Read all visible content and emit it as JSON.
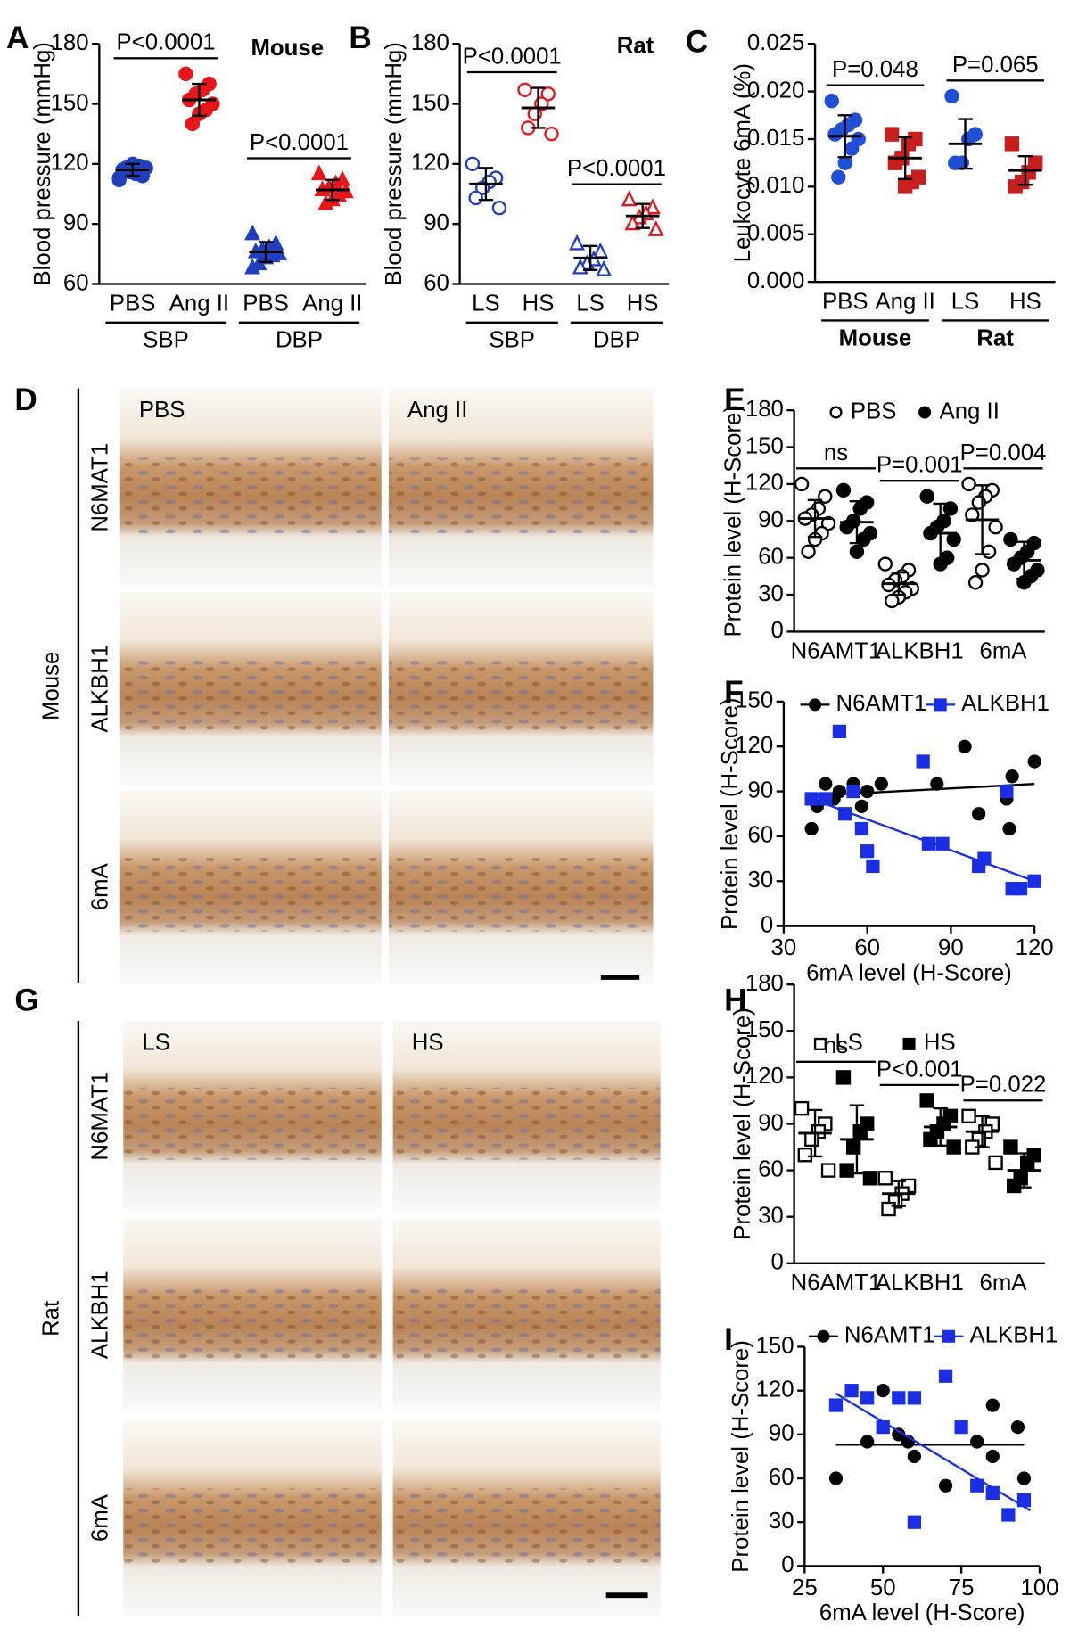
{
  "histology": [
    {
      "panel": "D",
      "side": "Mouse",
      "columns": [
        "PBS",
        "Ang II"
      ],
      "rows": [
        "N6MAT1",
        "ALKBH1",
        "6mA"
      ]
    },
    {
      "panel": "G",
      "side": "Rat",
      "columns": [
        "LS",
        "HS"
      ],
      "rows": [
        "N6MAT1",
        "ALKBH1",
        "6mA"
      ]
    }
  ],
  "chart_data": [
    {
      "type": "dotplot",
      "panel": "A",
      "title": "Mouse",
      "ylabel": "Blood pressure (mmHg)",
      "ylim": [
        60,
        180
      ],
      "yticks": [
        60,
        90,
        120,
        150,
        180
      ],
      "categories": [
        "PBS",
        "Ang II",
        "PBS",
        "Ang II"
      ],
      "groups": [
        "SBP",
        "DBP"
      ],
      "annotations": [
        "P<0.0001",
        "P<0.0001"
      ],
      "columns": [
        {
          "color": "#1f3fbf",
          "marker": "circle",
          "filled": true,
          "points": [
            112,
            114,
            115,
            116,
            117,
            118,
            119,
            120,
            118,
            113
          ],
          "mean": 117,
          "sd": 3
        },
        {
          "color": "#e8161b",
          "marker": "circle",
          "filled": true,
          "points": [
            165,
            160,
            157,
            155,
            152,
            150,
            147,
            145,
            140
          ],
          "mean": 152,
          "sd": 8
        },
        {
          "color": "#1f3fbf",
          "marker": "triangle",
          "filled": true,
          "points": [
            85,
            80,
            78,
            77,
            76,
            75,
            74,
            73,
            70,
            68
          ],
          "mean": 76,
          "sd": 5
        },
        {
          "color": "#e8161b",
          "marker": "triangle",
          "filled": true,
          "points": [
            115,
            112,
            110,
            108,
            107,
            106,
            104,
            102,
            100
          ],
          "mean": 107,
          "sd": 5
        }
      ]
    },
    {
      "type": "dotplot",
      "panel": "B",
      "title": "Rat",
      "ylabel": "Blood pressure (mmHg)",
      "ylim": [
        60,
        180
      ],
      "yticks": [
        60,
        90,
        120,
        150,
        180
      ],
      "categories": [
        "LS",
        "HS",
        "LS",
        "HS"
      ],
      "groups": [
        "SBP",
        "DBP"
      ],
      "annotations": [
        "P<0.0001",
        "P<0.0001"
      ],
      "columns": [
        {
          "color": "#1f3fbf",
          "marker": "circle",
          "filled": false,
          "points": [
            120,
            113,
            111,
            108,
            103,
            98
          ],
          "mean": 110,
          "sd": 8
        },
        {
          "color": "#e8161b",
          "marker": "circle",
          "filled": false,
          "points": [
            157,
            155,
            150,
            145,
            138,
            135
          ],
          "mean": 148,
          "sd": 10
        },
        {
          "color": "#1f3fbf",
          "marker": "triangle",
          "filled": false,
          "points": [
            80,
            76,
            72,
            70,
            68,
            67
          ],
          "mean": 73,
          "sd": 6
        },
        {
          "color": "#e8161b",
          "marker": "triangle",
          "filled": false,
          "points": [
            102,
            98,
            95,
            93,
            90,
            87
          ],
          "mean": 94,
          "sd": 6
        }
      ]
    },
    {
      "type": "dotplot",
      "panel": "C",
      "ylabel": "Leukocyte 6mA (%)",
      "ylim": [
        0,
        0.025
      ],
      "yticks": [
        {
          "value": 0,
          "label": "0.000"
        },
        {
          "value": 0.005,
          "label": "0.005"
        },
        {
          "value": 0.01,
          "label": "0.010"
        },
        {
          "value": 0.015,
          "label": "0.015"
        },
        {
          "value": 0.02,
          "label": "0.020"
        },
        {
          "value": 0.025,
          "label": "0.025"
        }
      ],
      "categories": [
        "PBS",
        "Ang II",
        "LS",
        "HS"
      ],
      "groups": [
        "Mouse",
        "Rat"
      ],
      "groups_bold": true,
      "annotations": [
        "P=0.048",
        "P=0.065"
      ],
      "columns": [
        {
          "color": "#1f4fd6",
          "marker": "circle",
          "filled": true,
          "points": [
            0.019,
            0.017,
            0.0165,
            0.016,
            0.0155,
            0.015,
            0.014,
            0.0125,
            0.011
          ],
          "mean": 0.0153,
          "sd": 0.0022
        },
        {
          "color": "#c81e1e",
          "marker": "square",
          "filled": true,
          "points": [
            0.0155,
            0.015,
            0.0145,
            0.013,
            0.0125,
            0.011,
            0.0105,
            0.01
          ],
          "mean": 0.013,
          "sd": 0.0022
        },
        {
          "color": "#1f4fd6",
          "marker": "circle",
          "filled": true,
          "points": [
            0.0195,
            0.0155,
            0.015,
            0.0125,
            0.0125
          ],
          "mean": 0.0145,
          "sd": 0.0026
        },
        {
          "color": "#c81e1e",
          "marker": "square",
          "filled": true,
          "points": [
            0.0145,
            0.0125,
            0.0115,
            0.0105,
            0.01
          ],
          "mean": 0.0117,
          "sd": 0.0015
        }
      ]
    },
    {
      "type": "dotplot",
      "panel": "E",
      "ylabel": "Protein level (H-Score)",
      "ylim": [
        0,
        180
      ],
      "yticks": [
        0,
        30,
        60,
        90,
        120,
        150,
        180
      ],
      "categories": [
        "N6AMT1",
        "ALKBH1",
        "6mA"
      ],
      "legend": [
        {
          "name": "PBS",
          "marker": "circle",
          "filled": false,
          "color": "#000000"
        },
        {
          "name": "Ang II",
          "marker": "circle",
          "filled": true,
          "color": "#000000"
        }
      ],
      "annotations": [
        "ns",
        "P=0.001",
        "P=0.004"
      ],
      "columns": [
        {
          "color": "#000000",
          "marker": "circle",
          "filled": false,
          "points": [
            120,
            110,
            100,
            95,
            92,
            88,
            80,
            75,
            65
          ],
          "mean": 92,
          "sd": 15
        },
        {
          "color": "#000000",
          "marker": "circle",
          "filled": true,
          "points": [
            115,
            105,
            100,
            90,
            85,
            80,
            75,
            65
          ],
          "mean": 89,
          "sd": 17
        },
        {
          "color": "#000000",
          "marker": "circle",
          "filled": false,
          "points": [
            55,
            50,
            45,
            42,
            38,
            35,
            32,
            28,
            25
          ],
          "mean": 39,
          "sd": 9
        },
        {
          "color": "#000000",
          "marker": "circle",
          "filled": true,
          "points": [
            110,
            100,
            90,
            85,
            80,
            75,
            60,
            55
          ],
          "mean": 80,
          "sd": 24
        },
        {
          "color": "#000000",
          "marker": "circle",
          "filled": false,
          "points": [
            120,
            115,
            110,
            105,
            95,
            85,
            65,
            50,
            40
          ],
          "mean": 91,
          "sd": 28
        },
        {
          "color": "#000000",
          "marker": "circle",
          "filled": true,
          "points": [
            75,
            72,
            65,
            60,
            55,
            50,
            45,
            40
          ],
          "mean": 58,
          "sd": 15
        }
      ]
    },
    {
      "type": "scatter",
      "panel": "F",
      "ylabel": "Protein level (H-Score)",
      "xlabel": "6mA level (H-Score)",
      "xlim": [
        30,
        120
      ],
      "xticks": [
        30,
        60,
        90,
        120
      ],
      "ylim": [
        0,
        150
      ],
      "yticks": [
        0,
        30,
        60,
        90,
        120,
        150
      ],
      "series": [
        {
          "name": "N6AMT1",
          "color": "#000000",
          "marker": "circle",
          "x": [
            40,
            42,
            45,
            48,
            50,
            55,
            58,
            60,
            65,
            85,
            95,
            100,
            110,
            111,
            112,
            120
          ],
          "y": [
            65,
            80,
            95,
            85,
            90,
            95,
            80,
            90,
            95,
            95,
            120,
            75,
            85,
            65,
            100,
            110
          ],
          "fit": {
            "x": [
              40,
              120
            ],
            "y": [
              87,
              95
            ]
          }
        },
        {
          "name": "ALKBH1",
          "color": "#1a2ee6",
          "marker": "square",
          "x": [
            40,
            45,
            50,
            52,
            55,
            58,
            60,
            62,
            80,
            82,
            87,
            100,
            102,
            110,
            112,
            115,
            120
          ],
          "y": [
            85,
            85,
            130,
            75,
            90,
            65,
            50,
            40,
            110,
            55,
            55,
            40,
            45,
            90,
            25,
            25,
            30
          ],
          "fit": {
            "x": [
              40,
              120
            ],
            "y": [
              85,
              30
            ]
          }
        }
      ]
    },
    {
      "type": "dotplot",
      "panel": "H",
      "ylabel": "Protein level (H-Score)",
      "ylim": [
        0,
        180
      ],
      "yticks": [
        0,
        30,
        60,
        90,
        120,
        150,
        180
      ],
      "categories": [
        "N6AMT1",
        "ALKBH1",
        "6mA"
      ],
      "legend": [
        {
          "name": "LS",
          "marker": "square",
          "filled": false,
          "color": "#000000"
        },
        {
          "name": "HS",
          "marker": "square",
          "filled": true,
          "color": "#000000"
        }
      ],
      "annotations": [
        "ns",
        "P<0.001",
        "P=0.022"
      ],
      "columns": [
        {
          "color": "#000000",
          "marker": "square",
          "filled": false,
          "points": [
            100,
            90,
            85,
            80,
            70,
            60
          ],
          "mean": 84,
          "sd": 15
        },
        {
          "color": "#000000",
          "marker": "square",
          "filled": true,
          "points": [
            120,
            90,
            85,
            75,
            60,
            55
          ],
          "mean": 80,
          "sd": 22
        },
        {
          "color": "#000000",
          "marker": "square",
          "filled": false,
          "points": [
            55,
            50,
            45,
            40,
            35
          ],
          "mean": 45,
          "sd": 8
        },
        {
          "color": "#000000",
          "marker": "square",
          "filled": true,
          "points": [
            105,
            95,
            90,
            85,
            80,
            75
          ],
          "mean": 88,
          "sd": 12
        },
        {
          "color": "#000000",
          "marker": "square",
          "filled": false,
          "points": [
            95,
            90,
            85,
            80,
            75,
            65
          ],
          "mean": 85,
          "sd": 10
        },
        {
          "color": "#000000",
          "marker": "square",
          "filled": true,
          "points": [
            75,
            70,
            65,
            55,
            50
          ],
          "mean": 60,
          "sd": 11
        }
      ]
    },
    {
      "type": "scatter",
      "panel": "I",
      "ylabel": "Protein level (H-Score)",
      "xlabel": "6mA level (H-Score)",
      "xlim": [
        25,
        100
      ],
      "xticks": [
        25,
        50,
        75,
        100
      ],
      "ylim": [
        0,
        150
      ],
      "yticks": [
        0,
        30,
        60,
        90,
        120,
        150
      ],
      "series": [
        {
          "name": "N6AMT1",
          "color": "#000000",
          "marker": "circle",
          "x": [
            35,
            45,
            50,
            55,
            58,
            60,
            70,
            80,
            85,
            85,
            93,
            95
          ],
          "y": [
            60,
            85,
            120,
            90,
            85,
            75,
            55,
            85,
            110,
            75,
            95,
            60
          ],
          "fit": {
            "x": [
              35,
              95
            ],
            "y": [
              83,
              83
            ]
          }
        },
        {
          "name": "ALKBH1",
          "color": "#1a2ee6",
          "marker": "square",
          "x": [
            35,
            40,
            45,
            50,
            55,
            60,
            60,
            70,
            75,
            80,
            85,
            90,
            95
          ],
          "y": [
            110,
            120,
            115,
            95,
            115,
            115,
            30,
            130,
            95,
            55,
            50,
            35,
            45
          ],
          "fit": {
            "x": [
              35,
              97
            ],
            "y": [
              118,
              38
            ]
          }
        }
      ]
    }
  ]
}
